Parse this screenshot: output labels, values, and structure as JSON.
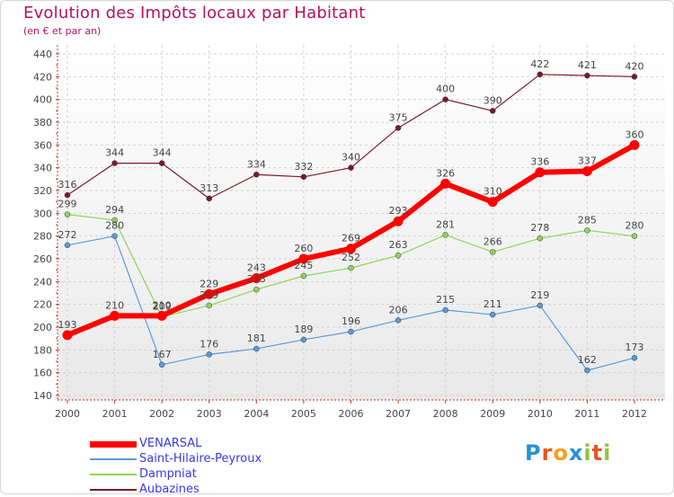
{
  "chart_data": {
    "type": "line",
    "title": "Evolution des Impôts locaux par Habitant",
    "subtitle": "(en € et par an)",
    "xlabel": "",
    "ylabel": "",
    "x": [
      "2000",
      "2001",
      "2002",
      "2003",
      "2004",
      "2005",
      "2006",
      "2007",
      "2008",
      "2009",
      "2010",
      "2011",
      "2012"
    ],
    "ylim": [
      140,
      440
    ],
    "yticks": [
      "140",
      "160",
      "180",
      "200",
      "220",
      "240",
      "260",
      "280",
      "300",
      "320",
      "340",
      "360",
      "380",
      "400",
      "420",
      "440"
    ],
    "grid": true,
    "legend_position": "bottom-left",
    "series": [
      {
        "name": "VENARSAL",
        "color": "#ff0000",
        "values": [
          193,
          210,
          210,
          229,
          243,
          260,
          269,
          293,
          326,
          310,
          336,
          337,
          360
        ]
      },
      {
        "name": "Saint-Hilaire-Peyroux",
        "color": "#5b9bd5",
        "values": [
          272,
          280,
          167,
          176,
          181,
          189,
          196,
          206,
          215,
          211,
          219,
          162,
          173
        ]
      },
      {
        "name": "Dampniat",
        "color": "#8fd45a",
        "values": [
          299,
          294,
          209,
          219,
          233,
          245,
          252,
          263,
          281,
          266,
          278,
          285,
          280
        ]
      },
      {
        "name": "Aubazines",
        "color": "#7a1a2a",
        "values": [
          316,
          344,
          344,
          313,
          334,
          332,
          340,
          375,
          400,
          390,
          422,
          421,
          420
        ]
      }
    ]
  },
  "branding": {
    "logo_letters": [
      "P",
      "r",
      "o",
      "x",
      "i",
      "t",
      "i"
    ],
    "logo_colors": [
      "#2a8fd6",
      "#e8541f",
      "#ff9d1c",
      "#2a8fd6",
      "#8cc63f",
      "#e8541f",
      "#8cc63f"
    ]
  }
}
